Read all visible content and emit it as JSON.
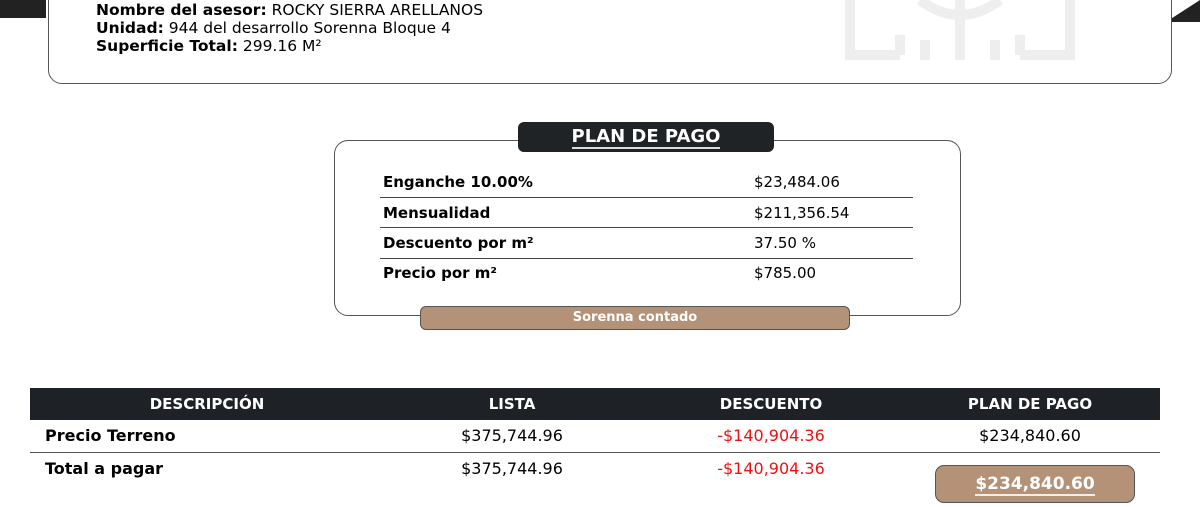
{
  "info": {
    "asesor_label": "Nombre del asesor:",
    "asesor_value": "ROCKY SIERRA ARELLANOS",
    "unidad_label": "Unidad:",
    "unidad_value": "944 del desarrollo Sorenna Bloque 4",
    "superficie_label": "Superficie Total:",
    "superficie_value": "299.16 M²"
  },
  "plan": {
    "title": "PLAN DE PAGO",
    "rows": [
      {
        "label": "Enganche 10.00%",
        "value": "$23,484.06"
      },
      {
        "label": "Mensualidad",
        "value": "$211,356.54"
      },
      {
        "label": "Descuento por m²",
        "value": "37.50 %"
      },
      {
        "label": "Precio por m²",
        "value": "$785.00"
      }
    ],
    "button": "Sorenna contado"
  },
  "table": {
    "headers": [
      "DESCRIPCIÓN",
      "LISTA",
      "DESCUENTO",
      "PLAN DE PAGO"
    ],
    "rows": [
      {
        "descripcion": "Precio Terreno",
        "lista": "$375,744.96",
        "descuento": "-$140,904.36",
        "plan": "$234,840.60"
      },
      {
        "descripcion": "Total a pagar",
        "lista": "$375,744.96",
        "descuento": "-$140,904.36",
        "plan": "$234,840.60"
      }
    ]
  },
  "colors": {
    "dark": "#1e2226",
    "accent": "#b39278",
    "negative": "#f01010"
  }
}
